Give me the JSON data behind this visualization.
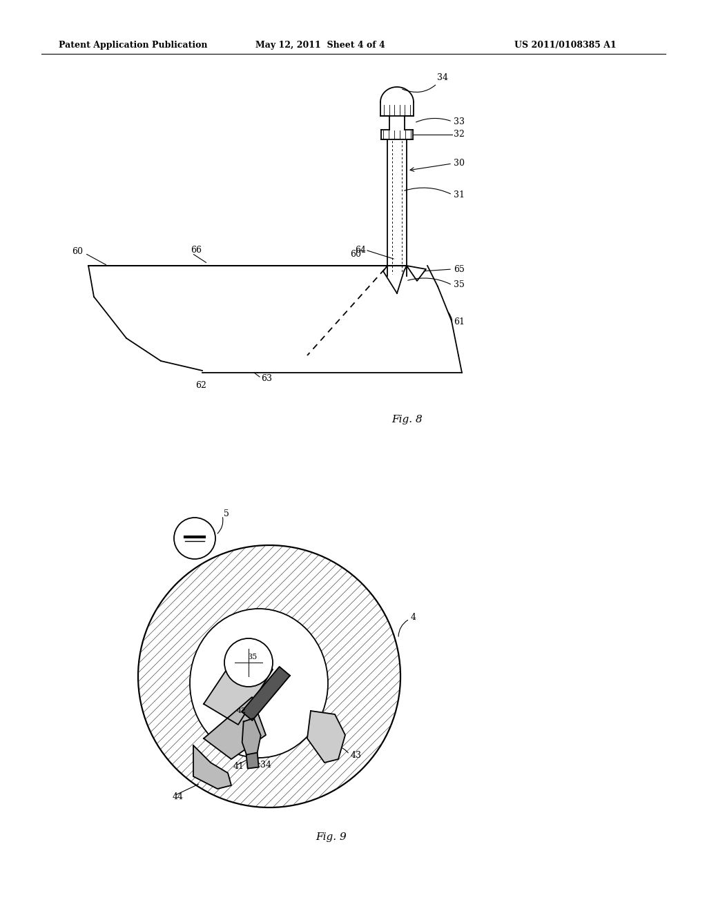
{
  "bg_color": "#ffffff",
  "header_text": "Patent Application Publication",
  "header_date": "May 12, 2011  Sheet 4 of 4",
  "header_patent": "US 2011/0108385 A1",
  "fig8_label": "Fig. 8",
  "fig9_label": "Fig. 9",
  "line_color": "#000000",
  "font_size_header": 9,
  "font_size_ref": 9,
  "font_size_fig": 11
}
